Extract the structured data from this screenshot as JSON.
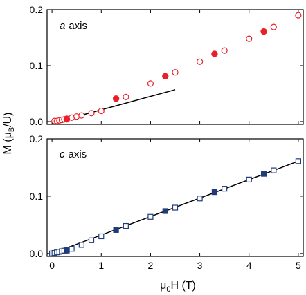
{
  "chart_data": [
    {
      "type": "scatter",
      "panel_label_italic": "a",
      "panel_label_text": "axis",
      "xlim": [
        -0.1,
        5.1
      ],
      "ylim": [
        -0.005,
        0.2
      ],
      "xticks": [
        0,
        1,
        2,
        3,
        4,
        5
      ],
      "yticks": [
        0.0,
        0.1,
        0.2
      ],
      "ytick_labels": [
        "0.0",
        "0.1",
        "0.2"
      ],
      "grid": false,
      "color": "#e8202a",
      "series": [
        {
          "marker": "open-circle",
          "x": [
            0.05,
            0.1,
            0.15,
            0.2,
            0.25,
            0.3,
            0.4,
            0.5,
            0.6,
            0.8,
            1.0,
            1.5,
            2.0,
            2.5,
            3.0,
            3.5,
            4.0,
            4.5,
            5.0
          ],
          "y": [
            0.001,
            0.001,
            0.002,
            0.003,
            0.004,
            0.005,
            0.007,
            0.009,
            0.011,
            0.015,
            0.019,
            0.044,
            0.068,
            0.088,
            0.107,
            0.127,
            0.148,
            0.169,
            0.19
          ]
        },
        {
          "marker": "filled-circle",
          "x": [
            0.3,
            1.3,
            2.3,
            3.3,
            4.3
          ],
          "y": [
            0.004,
            0.041,
            0.081,
            0.121,
            0.161
          ]
        }
      ],
      "fit_line": {
        "x": [
          0,
          2.5
        ],
        "y": [
          -0.003,
          0.057
        ],
        "color": "#000000"
      }
    },
    {
      "type": "scatter",
      "panel_label_italic": "c",
      "panel_label_text": "axis",
      "xlim": [
        -0.1,
        5.1
      ],
      "ylim": [
        -0.005,
        0.2
      ],
      "xticks": [
        0,
        1,
        2,
        3,
        4,
        5
      ],
      "xtick_labels": [
        "0",
        "1",
        "2",
        "3",
        "4",
        "5"
      ],
      "yticks": [
        0.0,
        0.1,
        0.2
      ],
      "ytick_labels": [
        "0.0",
        "0.1",
        "0.2"
      ],
      "grid": false,
      "color": "#1f3b7a",
      "series": [
        {
          "marker": "open-square",
          "x": [
            0.0,
            0.05,
            0.1,
            0.15,
            0.2,
            0.25,
            0.3,
            0.4,
            0.6,
            0.8,
            1.0,
            1.5,
            2.0,
            2.5,
            3.0,
            3.5,
            4.0,
            4.5,
            5.0
          ],
          "y": [
            0.0,
            0.001,
            0.002,
            0.003,
            0.004,
            0.005,
            0.006,
            0.008,
            0.015,
            0.023,
            0.03,
            0.048,
            0.064,
            0.08,
            0.096,
            0.113,
            0.129,
            0.145,
            0.161
          ]
        },
        {
          "marker": "filled-square",
          "x": [
            0.3,
            1.3,
            2.3,
            3.3,
            4.3
          ],
          "y": [
            0.005,
            0.041,
            0.074,
            0.107,
            0.139
          ]
        }
      ],
      "fit_line": {
        "x": [
          0,
          5.0
        ],
        "y": [
          0.0,
          0.161
        ],
        "color": "#000000"
      }
    }
  ],
  "shared_ylabel": "M (μ",
  "shared_ylabel_sub": "B",
  "shared_ylabel_tail": "/U)",
  "xlabel_main": "μ",
  "xlabel_sub": "0",
  "xlabel_tail": "H (T)"
}
